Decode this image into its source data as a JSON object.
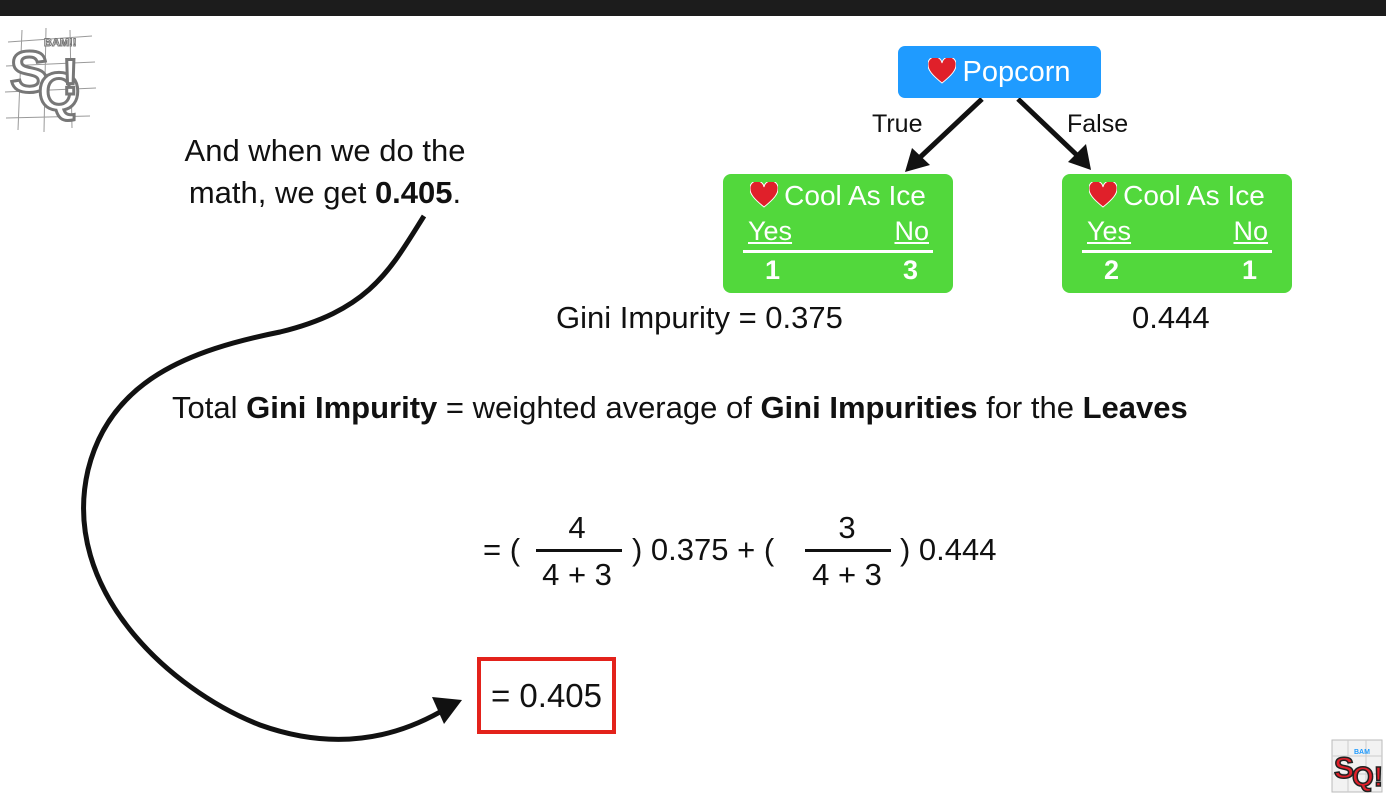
{
  "caption": {
    "line1": "And when we do the",
    "line2_prefix": "math, we get ",
    "line2_value": "0.405",
    "line2_suffix": "."
  },
  "tree": {
    "root_label": "Popcorn",
    "true_label": "True",
    "false_label": "False",
    "left_leaf": {
      "title": "Cool As Ice",
      "yes": "Yes",
      "no": "No",
      "yes_count": "1",
      "no_count": "3"
    },
    "right_leaf": {
      "title": "Cool As Ice",
      "yes": "Yes",
      "no": "No",
      "yes_count": "2",
      "no_count": "1"
    },
    "left_gini": "Gini Impurity = 0.375",
    "right_gini": "0.444"
  },
  "formula": {
    "p1": "Total ",
    "b1": "Gini Impurity",
    "p2": " = weighted average of ",
    "b2": "Gini Impurities",
    "p3": " for the ",
    "b3": "Leaves"
  },
  "equation": {
    "open1": "= (",
    "num1": "4",
    "den1": "4 + 3",
    "mid": ") 0.375 + (",
    "num2": "3",
    "den2": "4 + 3",
    "end": ") 0.444"
  },
  "result": "= 0.405",
  "icons": {
    "heart": "heart-icon",
    "logo": "stat-quest-logo-icon",
    "watermark": "stat-quest-watermark-icon"
  },
  "colors": {
    "root": "#1f9bff",
    "leaf": "#52d83c",
    "result_border": "#e3221b",
    "heart": "#e0202a"
  }
}
